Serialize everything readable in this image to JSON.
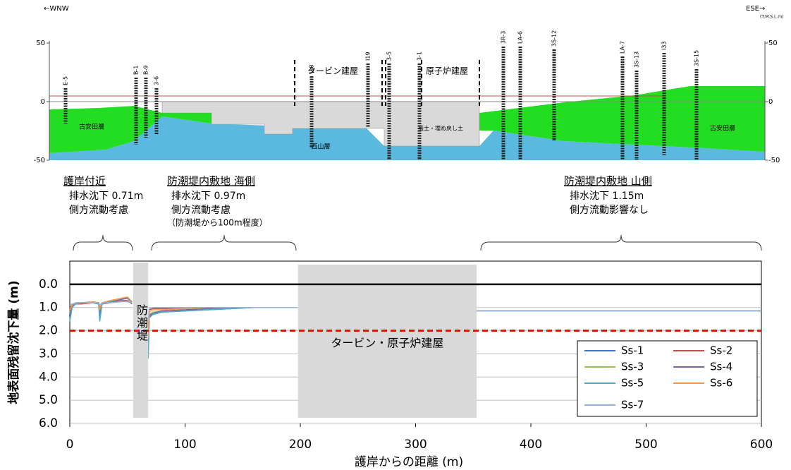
{
  "cross_section": {
    "direction_left": "←WNW",
    "direction_right": "ESE→",
    "unit": "(T.M.S.L.m)",
    "ylim": [
      -50,
      50
    ],
    "yticks": [
      50,
      0,
      -50
    ],
    "boreholes": [
      "E-5",
      "B-1",
      "B-9",
      "3-6",
      "I18",
      "I19",
      "3-5",
      "3-1",
      "3R-3",
      "LA-6",
      "3S-12",
      "LA-7",
      "3S-13",
      "I33",
      "3S-15"
    ],
    "layers": [
      "古安田層",
      "西山層",
      "盛土・埋め戻し土",
      "古安田層"
    ],
    "buildings": [
      "タービン建屋",
      "原子炉建屋"
    ]
  },
  "zones": [
    {
      "title": "護岸付近",
      "lines": [
        "排水沈下 0.71m",
        "側方流動考慮"
      ]
    },
    {
      "title": "防潮堤内敷地 海側",
      "lines": [
        "排水沈下 0.97m",
        "側方流動考慮",
        "（防潮堤から100m程度）"
      ]
    },
    {
      "title": "防潮堤内敷地 山側",
      "lines": [
        "排水沈下 1.15m",
        "側方流動影響なし"
      ]
    }
  ],
  "chart_data": {
    "type": "line",
    "x_label": "護岸からの距離 (m)",
    "y_label": "地表面残留沈下量 (m)",
    "xlim": [
      0,
      600
    ],
    "xticks": [
      0,
      100,
      200,
      300,
      400,
      500,
      600
    ],
    "ylim": [
      -1,
      6
    ],
    "y_inverted": true,
    "yticks": [
      {
        "value": 0,
        "label": "0.0"
      },
      {
        "value": 1,
        "label": "1.0"
      },
      {
        "value": 2,
        "label": "2.0"
      },
      {
        "value": 3,
        "label": "3.0"
      },
      {
        "value": 4,
        "label": "4.0"
      },
      {
        "value": 5,
        "label": "5.0"
      },
      {
        "value": 6,
        "label": "6.0"
      }
    ],
    "grid": true,
    "legend": "lower right",
    "reference_lines": [
      {
        "value": 0,
        "color": "#000000",
        "style": "solid"
      },
      {
        "value": 2,
        "color": "#ff0000",
        "style": "dashed"
      }
    ],
    "regions": [
      {
        "label": "防潮堤",
        "x": [
          55,
          68
        ]
      },
      {
        "label": "タービン・原子炉建屋",
        "x": [
          198,
          353
        ]
      }
    ],
    "x": [
      0,
      2,
      5,
      10,
      20,
      25,
      26,
      28,
      35,
      45,
      50,
      54,
      60,
      68,
      69,
      72,
      80,
      100,
      120,
      140,
      160,
      197,
      275,
      353,
      600
    ],
    "series": [
      {
        "name": "Ss-1",
        "color": "#4472c4",
        "values": [
          1.5,
          0.95,
          0.85,
          0.8,
          0.8,
          0.85,
          1.5,
          0.85,
          0.75,
          0.65,
          0.6,
          0.8,
          null,
          3.0,
          1.4,
          1.3,
          1.2,
          1.15,
          1.1,
          1.05,
          1.0,
          1.0,
          null,
          1.15,
          1.15
        ]
      },
      {
        "name": "Ss-2",
        "color": "#c0504d",
        "values": [
          1.0,
          0.9,
          0.85,
          0.85,
          0.8,
          0.8,
          1.0,
          0.85,
          0.8,
          0.7,
          0.7,
          0.85,
          null,
          2.0,
          1.1,
          1.05,
          1.05,
          1.05,
          1.0,
          1.0,
          1.0,
          1.0,
          null,
          1.15,
          1.15
        ]
      },
      {
        "name": "Ss-3",
        "color": "#9bbb59",
        "values": [
          1.2,
          0.9,
          0.8,
          0.8,
          0.75,
          0.8,
          1.2,
          0.8,
          0.75,
          0.6,
          0.55,
          0.8,
          null,
          2.5,
          1.3,
          1.2,
          1.15,
          1.1,
          1.05,
          1.0,
          1.0,
          1.0,
          null,
          1.15,
          1.15
        ]
      },
      {
        "name": "Ss-4",
        "color": "#8064a2",
        "values": [
          1.3,
          0.95,
          0.85,
          0.8,
          0.8,
          0.8,
          1.3,
          0.85,
          0.75,
          0.65,
          0.6,
          0.8,
          null,
          2.7,
          1.35,
          1.25,
          1.15,
          1.1,
          1.05,
          1.0,
          1.0,
          1.0,
          null,
          1.15,
          1.15
        ]
      },
      {
        "name": "Ss-5",
        "color": "#4bacc6",
        "values": [
          1.6,
          1.0,
          0.85,
          0.8,
          0.8,
          0.85,
          1.6,
          0.85,
          0.75,
          0.6,
          0.55,
          0.8,
          null,
          3.2,
          1.45,
          1.3,
          1.2,
          1.15,
          1.1,
          1.05,
          1.0,
          1.0,
          null,
          1.15,
          1.15
        ]
      },
      {
        "name": "Ss-6",
        "color": "#f79646",
        "values": [
          1.1,
          0.9,
          0.8,
          0.8,
          0.75,
          0.8,
          1.1,
          0.8,
          0.7,
          0.6,
          0.55,
          0.75,
          null,
          2.3,
          1.2,
          1.1,
          1.1,
          1.05,
          1.0,
          1.0,
          1.0,
          1.0,
          null,
          1.15,
          1.15
        ]
      },
      {
        "name": "Ss-7",
        "color": "#95b3d7",
        "values": [
          0.9,
          0.85,
          0.8,
          0.8,
          0.8,
          0.8,
          0.9,
          0.8,
          0.8,
          0.75,
          0.75,
          0.8,
          null,
          1.6,
          1.05,
          1.0,
          1.0,
          1.0,
          1.0,
          1.0,
          1.0,
          1.0,
          null,
          1.15,
          1.15
        ]
      }
    ]
  }
}
